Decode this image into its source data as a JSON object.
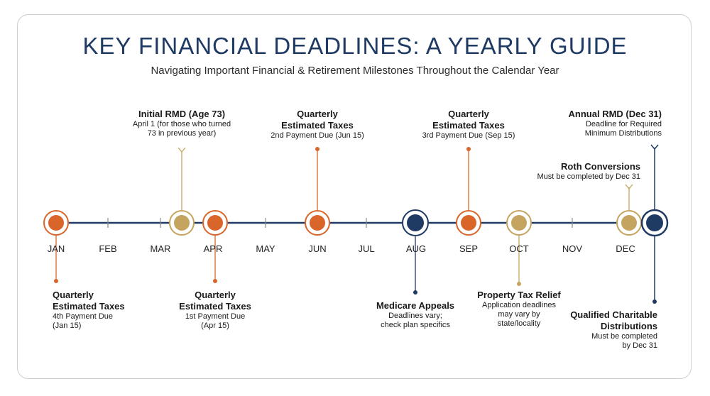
{
  "header": {
    "title": "KEY FINANCIAL DEADLINES: A YEARLY GUIDE",
    "subtitle": "Navigating Important Financial & Retirement Milestones Throughout the Calendar Year"
  },
  "colors": {
    "navy": "#1f3a63",
    "orange": "#d9652b",
    "gold": "#c4a45f",
    "line": "#1f3a63"
  },
  "months": [
    "JAN",
    "FEB",
    "MAR",
    "APR",
    "MAY",
    "JUN",
    "JUL",
    "AUG",
    "SEP",
    "OCT",
    "NOV",
    "DEC"
  ],
  "events": {
    "jan": {
      "title_1": "Quarterly",
      "title_2": "Estimated Taxes",
      "line_1": "4th Payment Due",
      "line_2": "(Jan 15)"
    },
    "mar": {
      "title_1": "Initial RMD (Age 73)",
      "line_1": "April 1 (for those who turned",
      "line_2": "73 in previous year)"
    },
    "apr": {
      "title_1": "Quarterly",
      "title_2": "Estimated Taxes",
      "line_1": "1st Payment Due",
      "line_2": "(Apr 15)"
    },
    "jun": {
      "title_1": "Quarterly",
      "title_2": "Estimated Taxes",
      "line_1": "2nd Payment Due (Jun 15)"
    },
    "aug": {
      "title_1": "Medicare Appeals",
      "line_1": "Deadlines vary;",
      "line_2": "check plan specifics"
    },
    "sep": {
      "title_1": "Quarterly",
      "title_2": "Estimated Taxes",
      "line_1": "3rd Payment Due (Sep 15)"
    },
    "oct": {
      "title_1": "Property Tax Relief",
      "line_1": "Application deadlines",
      "line_2": "may vary by",
      "line_3": "state/locality"
    },
    "dec_roth": {
      "title_1": "Roth Conversions",
      "line_1": "Must be completed by Dec 31"
    },
    "dec_rmd": {
      "title_1": "Annual RMD (Dec 31)",
      "line_1": "Deadline for Required",
      "line_2": "Minimum Distributions"
    },
    "dec_qcd": {
      "title_1": "Qualified Charitable",
      "title_2": "Distributions",
      "line_1": "Must be completed",
      "line_2": "by Dec 31"
    }
  }
}
